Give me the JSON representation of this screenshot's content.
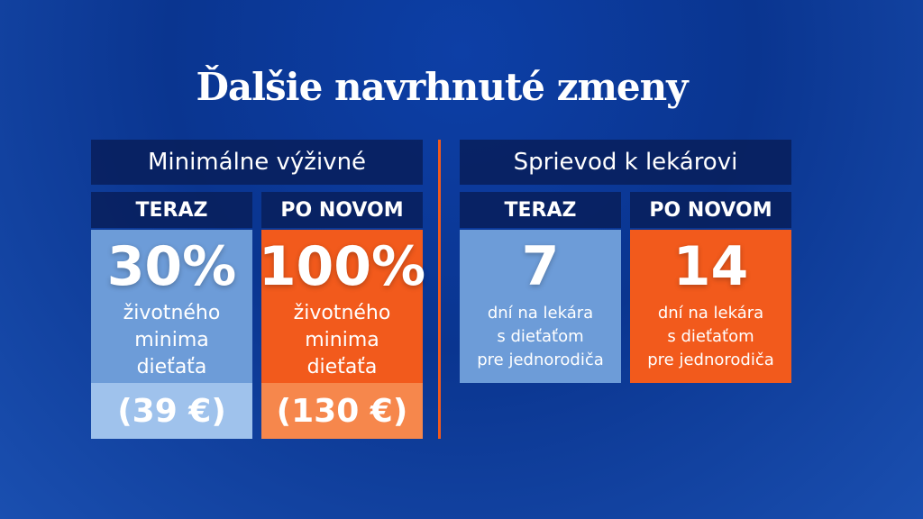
{
  "title": "Ďalšie navrhnuté zmeny",
  "sections": [
    {
      "header": "Minimálne výživné",
      "columns": [
        {
          "label": "TERAZ",
          "value": "30%",
          "description": [
            "životného",
            "minima",
            "dieťaťa"
          ],
          "amount": "(39 €)"
        },
        {
          "label": "PO NOVOM",
          "value": "100%",
          "description": [
            "životného",
            "minima",
            "dieťaťa"
          ],
          "amount": "(130 €)"
        }
      ]
    },
    {
      "header": "Sprievod k lekárovi",
      "columns": [
        {
          "label": "TERAZ",
          "value": "7",
          "description": [
            "dní na lekára",
            "s dieťaťom",
            "pre jednorodiča"
          ]
        },
        {
          "label": "PO NOVOM",
          "value": "14",
          "description": [
            "dní na lekára",
            "s dieťaťom",
            "pre jednorodiča"
          ]
        }
      ]
    }
  ]
}
